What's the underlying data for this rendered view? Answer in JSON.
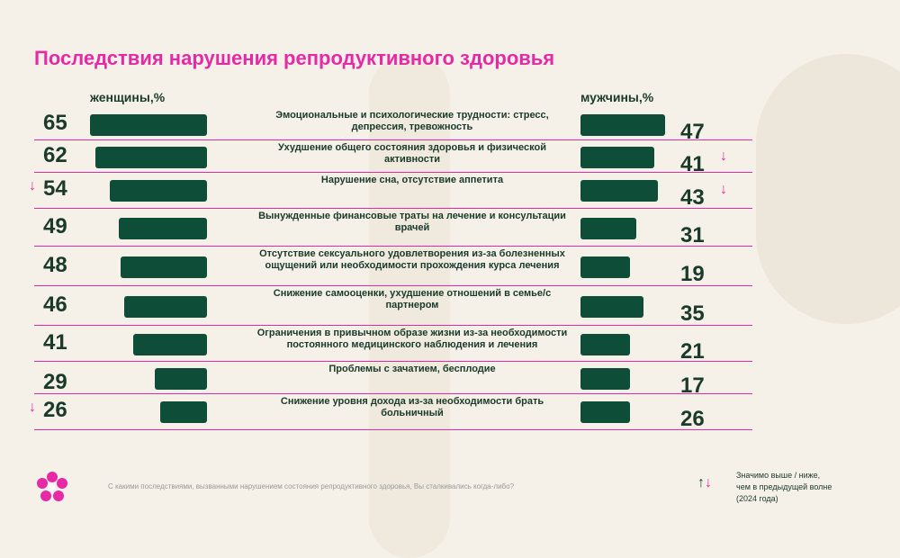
{
  "title": "Последствия нарушения репродуктивного здоровья",
  "women_label": "женщины,%",
  "men_label": "мужчины,%",
  "question": "С какими последствиями, вызванными нарушением состояния репродуктивного здоровья, Вы сталкивались когда-либо?",
  "legend": {
    "line1": "Значимо выше / ниже,",
    "line2": "чем в предыдущей волне",
    "line3": "(2024 года)"
  },
  "colors": {
    "accent": "#e62aa6",
    "bar": "#0e4d38",
    "text": "#1a3a2a",
    "background": "#f5f0e8"
  },
  "icons": {
    "down_arrow": "↓",
    "up_arrow": "↑"
  },
  "chart_data": {
    "type": "bar",
    "categories": [
      "Эмоциональные и психологические трудности: стресс, депрессия, тревожность",
      "Ухудшение общего состояния здоровья и физической активности",
      "Нарушение сна, отсутствие аппетита",
      "Вынужденные финансовые траты на лечение и консультации врачей",
      "Отсутствие сексуального удовлетворения из-за болезненных ощущений или необходимости прохождения курса лечения",
      "Снижение самооценки, ухудшение отношений в семье/с партнером",
      "Ограничения в привычном образе жизни из-за необходимости постоянного медицинского наблюдения и лечения",
      "Проблемы с зачатием, бесплодие",
      "Снижение уровня дохода из-за необходимости брать больничный"
    ],
    "series": [
      {
        "name": "женщины,%",
        "values": [
          65,
          62,
          54,
          49,
          48,
          46,
          41,
          29,
          26
        ],
        "down": [
          false,
          false,
          true,
          false,
          false,
          false,
          false,
          false,
          true
        ]
      },
      {
        "name": "мужчины,%",
        "values": [
          47,
          41,
          43,
          31,
          19,
          35,
          21,
          17,
          26
        ],
        "down": [
          false,
          true,
          true,
          false,
          false,
          false,
          false,
          false,
          false
        ]
      }
    ]
  }
}
